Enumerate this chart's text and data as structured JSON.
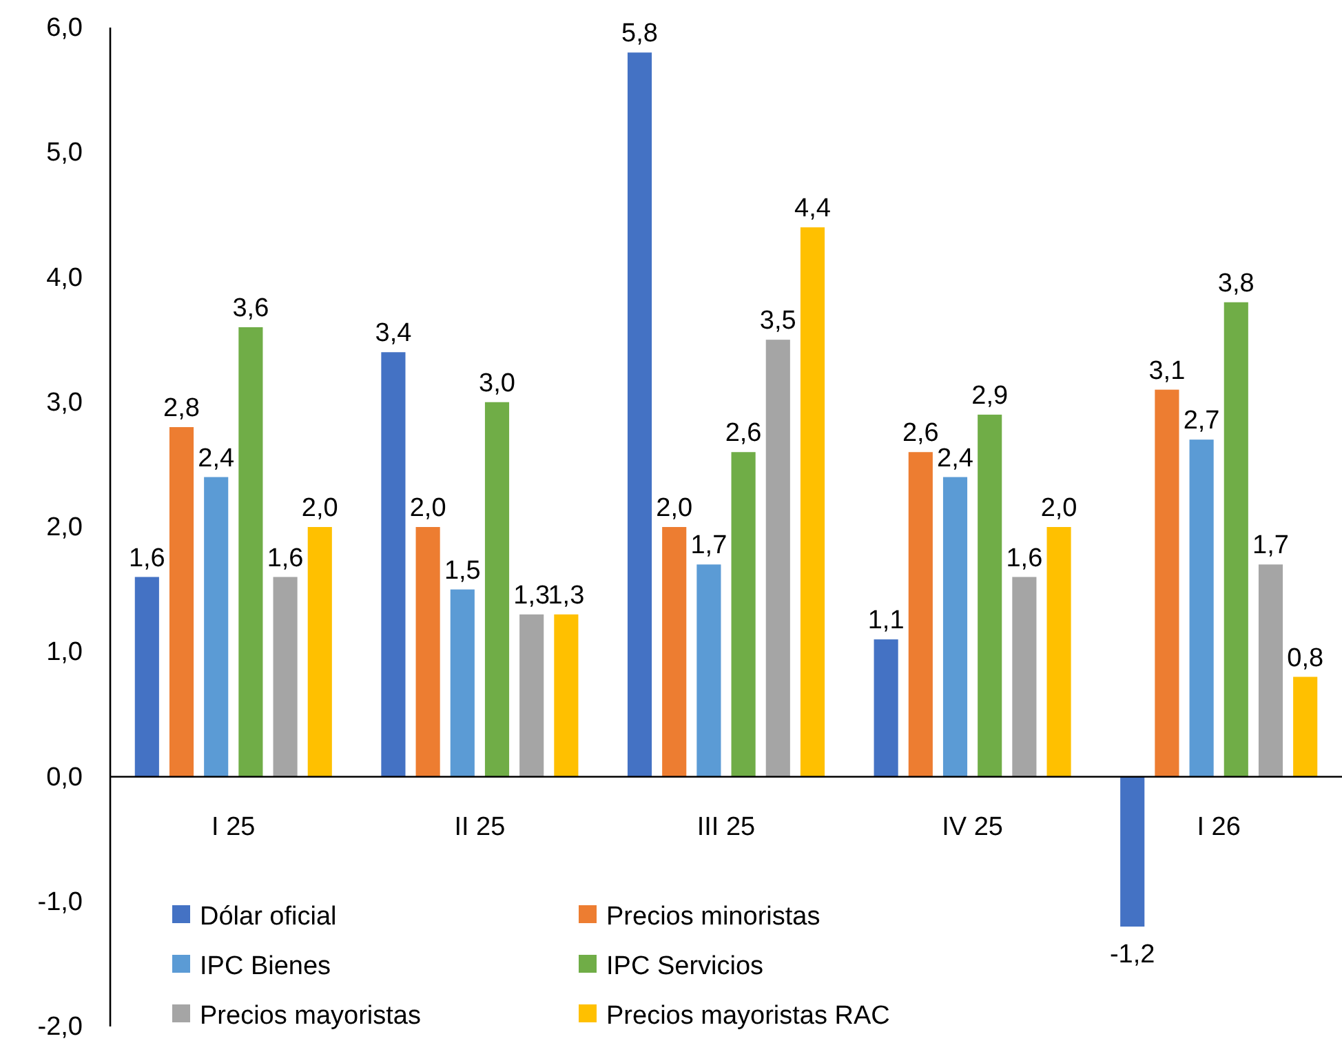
{
  "chart_data": {
    "type": "bar",
    "categories": [
      "I 25",
      "II 25",
      "III 25",
      "IV 25",
      "I 26"
    ],
    "series": [
      {
        "name": "Dólar oficial",
        "color": "#4472c4",
        "values": [
          1.6,
          3.4,
          5.8,
          1.1,
          -1.2
        ],
        "value_labels": [
          "1,6",
          "3,4",
          "5,8",
          "1,1",
          "-1,2"
        ]
      },
      {
        "name": "Precios minoristas",
        "color": "#ed7d31",
        "values": [
          2.8,
          2.0,
          2.0,
          2.6,
          3.1
        ],
        "value_labels": [
          "2,8",
          "2,0",
          "2,0",
          "2,6",
          "3,1"
        ]
      },
      {
        "name": "IPC Bienes",
        "color": "#5b9bd5",
        "values": [
          2.4,
          1.5,
          1.7,
          2.4,
          2.7
        ],
        "value_labels": [
          "2,4",
          "1,5",
          "1,7",
          "2,4",
          "2,7"
        ]
      },
      {
        "name": "IPC Servicios",
        "color": "#70ad47",
        "values": [
          3.6,
          3.0,
          2.6,
          2.9,
          3.8
        ],
        "value_labels": [
          "3,6",
          "3,0",
          "2,6",
          "2,9",
          "3,8"
        ]
      },
      {
        "name": "Precios mayoristas",
        "color": "#a5a5a5",
        "values": [
          1.6,
          1.3,
          3.5,
          1.6,
          1.7
        ],
        "value_labels": [
          "1,6",
          "1,3",
          "3,5",
          "1,6",
          "1,7"
        ]
      },
      {
        "name": "Precios mayoristas RAC",
        "color": "#ffc000",
        "values": [
          2.0,
          1.3,
          4.4,
          2.0,
          0.8
        ],
        "value_labels": [
          "2,0",
          "1,3",
          "4,4",
          "2,0",
          "0,8"
        ]
      }
    ],
    "ylim": [
      -2,
      6
    ],
    "yticks": [
      {
        "value": -2,
        "label": "-2,0"
      },
      {
        "value": -1,
        "label": "-1,0"
      },
      {
        "value": 0,
        "label": "0,0"
      },
      {
        "value": 1,
        "label": "1,0"
      },
      {
        "value": 2,
        "label": "2,0"
      },
      {
        "value": 3,
        "label": "3,0"
      },
      {
        "value": 4,
        "label": "4,0"
      },
      {
        "value": 5,
        "label": "5,0"
      },
      {
        "value": 6,
        "label": "6,0"
      }
    ],
    "grid": false,
    "legend": "bottom left"
  }
}
